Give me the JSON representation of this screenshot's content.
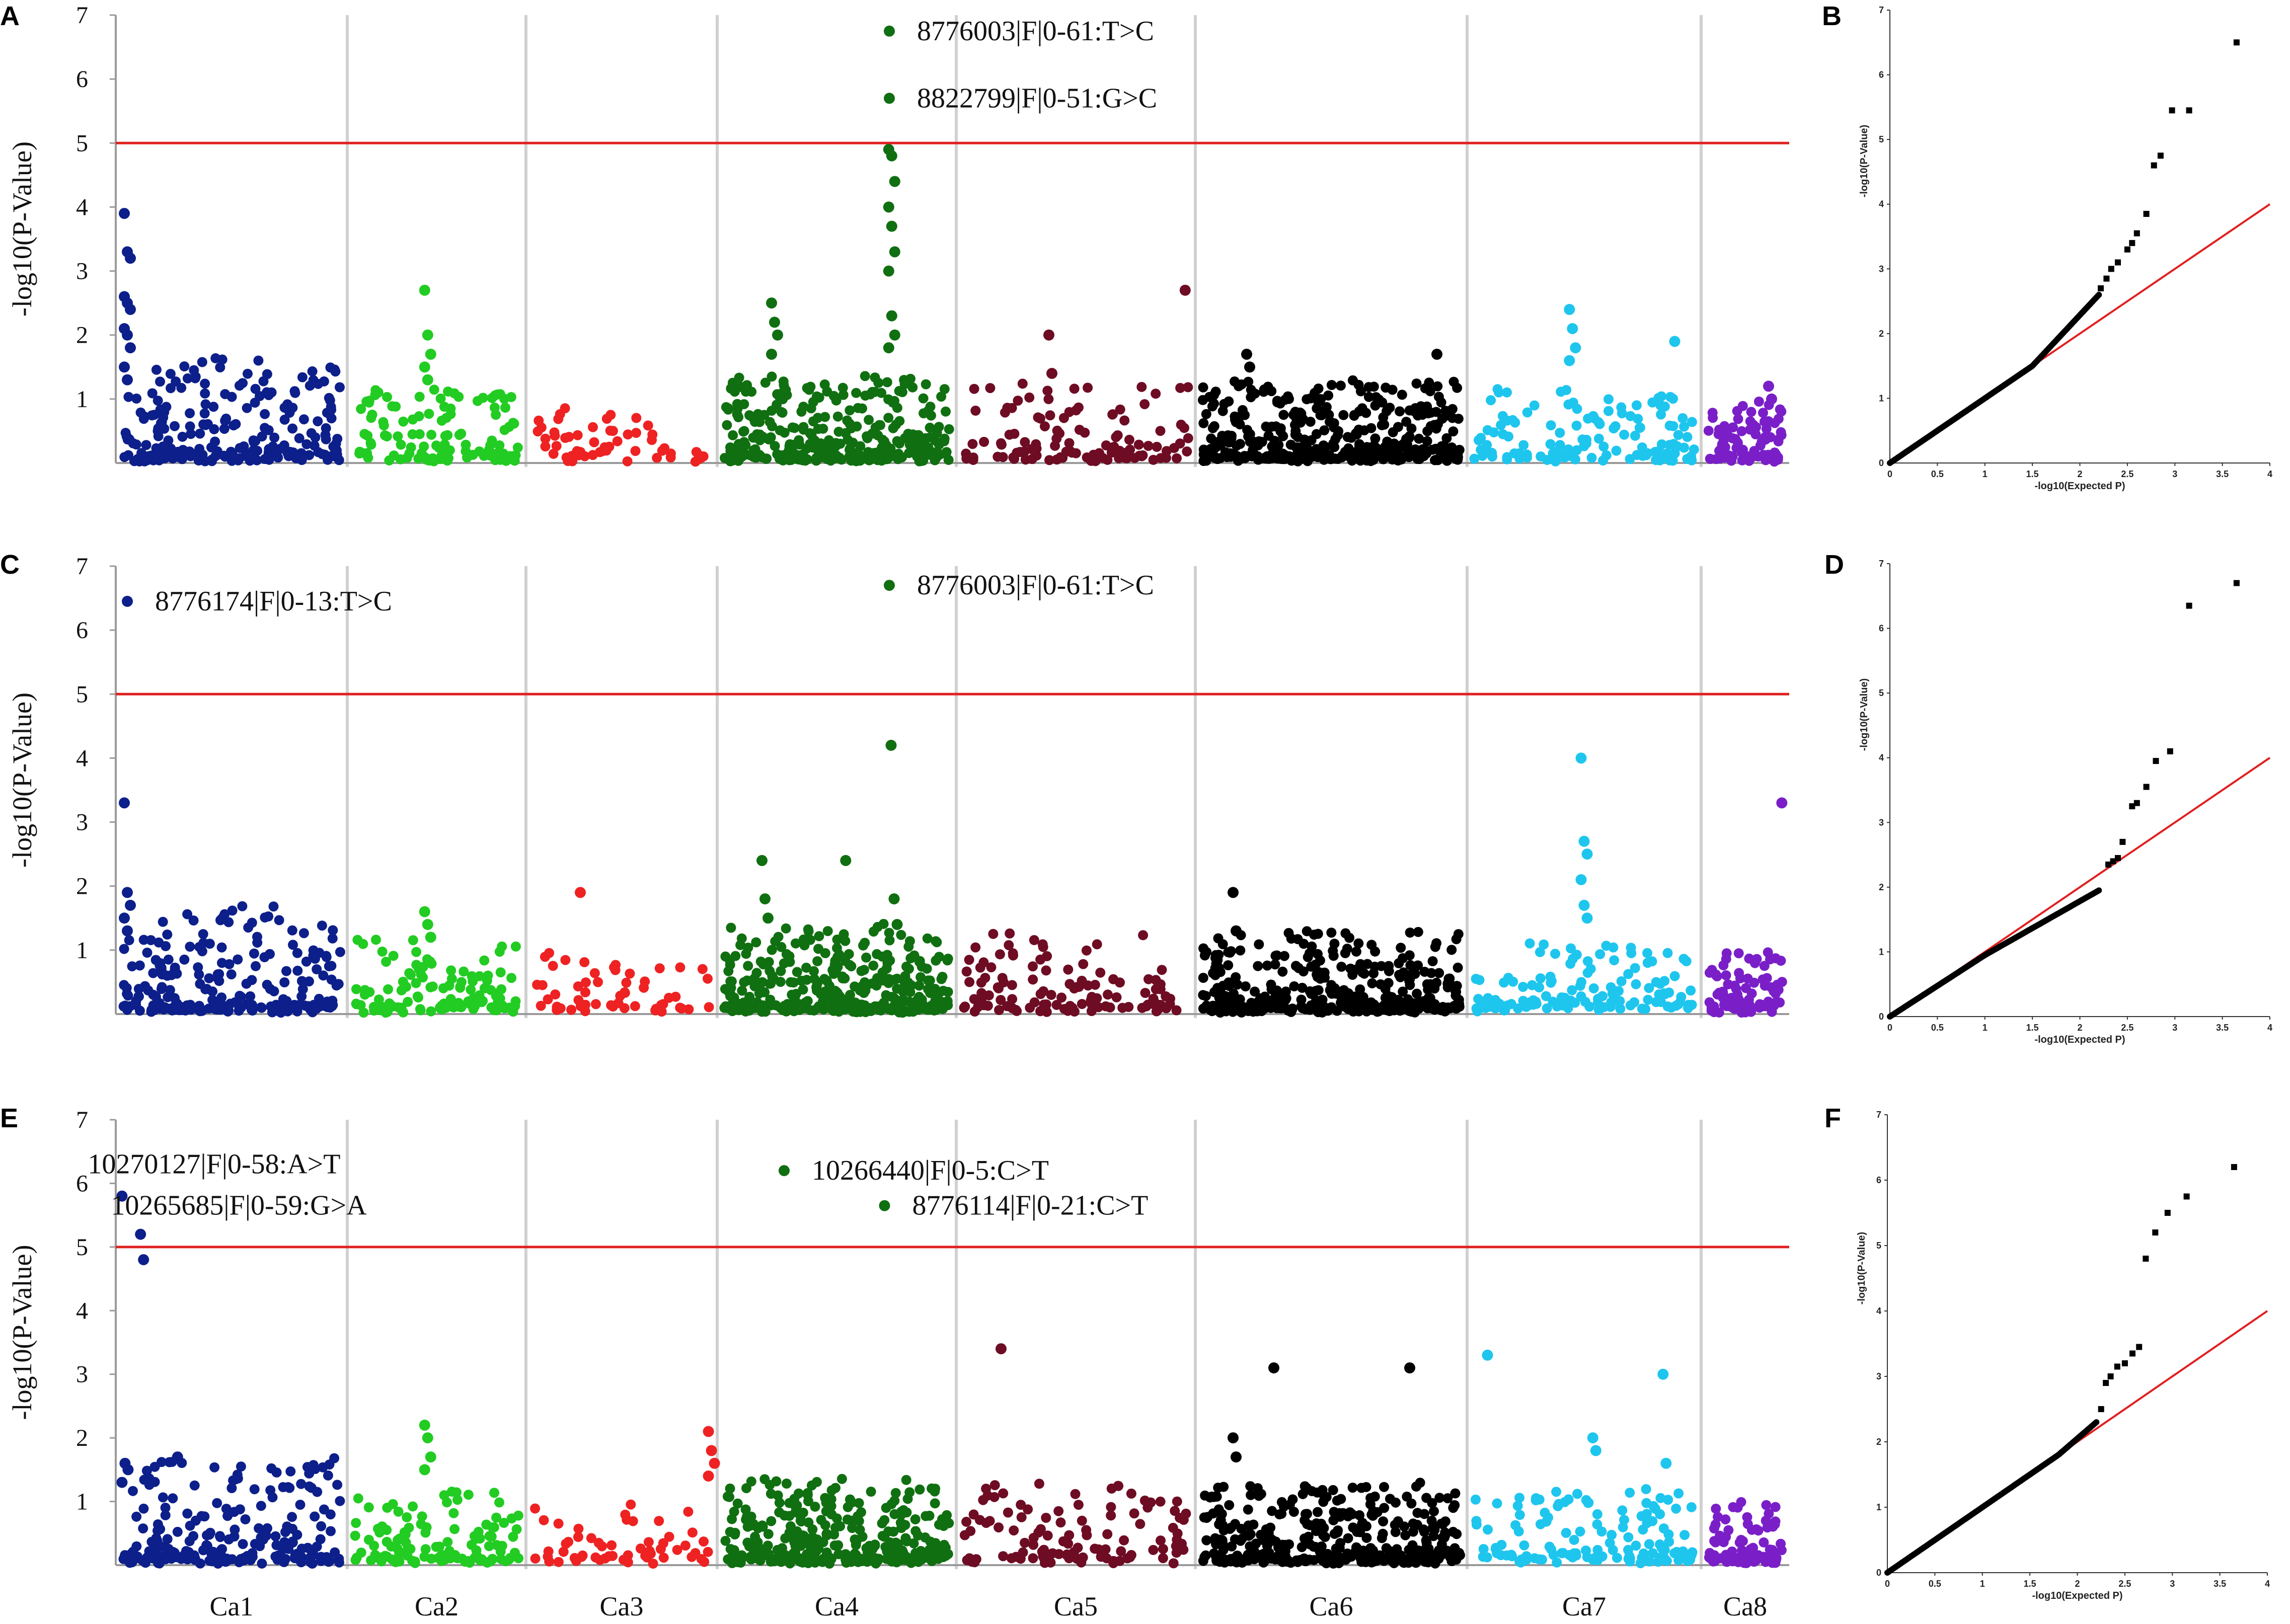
{
  "figure": {
    "description_free": true,
    "panels": [
      "A",
      "B",
      "C",
      "D",
      "E",
      "F"
    ]
  },
  "colors": {
    "Ca1": "#0d1f8a",
    "Ca2": "#22cc22",
    "Ca3": "#ee2222",
    "Ca4": "#106f10",
    "Ca5": "#6e0c24",
    "Ca6": "#000000",
    "Ca7": "#1ec6ee",
    "Ca8": "#7a1fc8",
    "threshold": "#e02020",
    "separator": "#d0d0d0",
    "qq_points": "#000000",
    "qq_line": "#e02020"
  },
  "chart_data": [
    {
      "panel": "A",
      "type": "scatter",
      "title": "",
      "xlabel": "",
      "ylabel": "-log10(P-Value)",
      "ylim": [
        0,
        7
      ],
      "yticks": [
        "1",
        "2",
        "3",
        "4",
        "5",
        "6",
        "7"
      ],
      "threshold": 5,
      "chromosomes": [
        "Ca1",
        "Ca2",
        "Ca3",
        "Ca4",
        "Ca5",
        "Ca6",
        "Ca7",
        "Ca8"
      ],
      "show_chrom_labels": false,
      "peaks": [
        {
          "chrom": "Ca1",
          "pos": 0.05,
          "values": [
            3.9,
            3.3,
            3.2,
            2.6,
            2.5,
            2.4,
            2.1,
            2.0,
            1.8,
            1.5,
            1.3
          ]
        },
        {
          "chrom": "Ca2",
          "pos": 0.45,
          "values": [
            2.7,
            2.0,
            1.7,
            1.5,
            1.3
          ]
        },
        {
          "chrom": "Ca4",
          "pos": 0.73,
          "values": [
            4.9,
            4.8,
            4.4,
            4.0,
            3.7,
            3.3,
            3.0,
            2.3,
            2.0,
            1.8
          ]
        },
        {
          "chrom": "Ca4",
          "pos": 0.24,
          "values": [
            2.5,
            2.2,
            2.0,
            1.7
          ]
        },
        {
          "chrom": "Ca5",
          "pos": 0.97,
          "values": [
            2.7
          ]
        },
        {
          "chrom": "Ca5",
          "pos": 0.4,
          "values": [
            2.0,
            1.4
          ]
        },
        {
          "chrom": "Ca6",
          "pos": 0.2,
          "values": [
            1.7,
            1.5
          ]
        },
        {
          "chrom": "Ca6",
          "pos": 0.9,
          "values": [
            1.7
          ]
        },
        {
          "chrom": "Ca7",
          "pos": 0.45,
          "values": [
            2.4,
            2.1,
            1.8,
            1.6
          ]
        },
        {
          "chrom": "Ca7",
          "pos": 0.9,
          "values": [
            1.9
          ]
        },
        {
          "chrom": "Ca8",
          "pos": 0.8,
          "values": [
            1.2,
            1.0
          ]
        }
      ],
      "annotations": [
        {
          "label": "8776003|F|0-61:T>C",
          "chrom": "Ca4",
          "pos": 0.72,
          "value": 6.75
        },
        {
          "label": "8822799|F|0-51:G>C",
          "chrom": "Ca4",
          "pos": 0.72,
          "value": 5.7
        }
      ]
    },
    {
      "panel": "C",
      "type": "scatter",
      "title": "",
      "xlabel": "",
      "ylabel": "-log10(P-Value)",
      "ylim": [
        0,
        7
      ],
      "yticks": [
        "1",
        "2",
        "3",
        "4",
        "5",
        "6",
        "7"
      ],
      "threshold": 5,
      "chromosomes": [
        "Ca1",
        "Ca2",
        "Ca3",
        "Ca4",
        "Ca5",
        "Ca6",
        "Ca7",
        "Ca8"
      ],
      "show_chrom_labels": false,
      "peaks": [
        {
          "chrom": "Ca1",
          "pos": 0.05,
          "values": [
            3.3,
            1.9,
            1.7,
            1.5,
            1.3
          ]
        },
        {
          "chrom": "Ca2",
          "pos": 0.45,
          "values": [
            1.6,
            1.4,
            1.2
          ]
        },
        {
          "chrom": "Ca3",
          "pos": 0.3,
          "values": [
            1.9
          ]
        },
        {
          "chrom": "Ca4",
          "pos": 0.74,
          "values": [
            4.2,
            1.8,
            1.4
          ]
        },
        {
          "chrom": "Ca4",
          "pos": 0.55,
          "values": [
            2.4
          ]
        },
        {
          "chrom": "Ca4",
          "pos": 0.2,
          "values": [
            2.4,
            1.8,
            1.5
          ]
        },
        {
          "chrom": "Ca7",
          "pos": 0.5,
          "values": [
            4.0,
            2.7,
            2.5,
            2.1,
            1.7,
            1.5
          ]
        },
        {
          "chrom": "Ca8",
          "pos": 0.95,
          "values": [
            3.3
          ]
        },
        {
          "chrom": "Ca6",
          "pos": 0.15,
          "values": [
            1.9,
            1.3
          ]
        }
      ],
      "annotations": [
        {
          "label": "8776174|F|0-13:T>C",
          "chrom": "Ca1",
          "pos": 0.05,
          "value": 6.45
        },
        {
          "label": "8776003|F|0-61:T>C",
          "chrom": "Ca4",
          "pos": 0.72,
          "value": 6.7
        }
      ]
    },
    {
      "panel": "E",
      "type": "scatter",
      "title": "",
      "xlabel": "",
      "ylabel": "-log10(P-Value)",
      "ylim": [
        0,
        7
      ],
      "yticks": [
        "1",
        "2",
        "3",
        "4",
        "5",
        "6",
        "7"
      ],
      "threshold": 5,
      "chromosomes": [
        "Ca1",
        "Ca2",
        "Ca3",
        "Ca4",
        "Ca5",
        "Ca6",
        "Ca7",
        "Ca8"
      ],
      "show_chrom_labels": true,
      "peaks": [
        {
          "chrom": "Ca1",
          "pos": 0.04,
          "values": [
            5.8,
            1.6,
            1.5,
            1.3
          ]
        },
        {
          "chrom": "Ca1",
          "pos": 0.12,
          "values": [
            5.2,
            4.8
          ]
        },
        {
          "chrom": "Ca1",
          "pos": 0.28,
          "values": [
            1.7
          ]
        },
        {
          "chrom": "Ca2",
          "pos": 0.45,
          "values": [
            2.2,
            2.0,
            1.7,
            1.5
          ]
        },
        {
          "chrom": "Ca3",
          "pos": 0.97,
          "values": [
            2.1,
            1.8,
            1.6,
            1.4
          ]
        },
        {
          "chrom": "Ca5",
          "pos": 0.2,
          "values": [
            3.4
          ]
        },
        {
          "chrom": "Ca6",
          "pos": 0.3,
          "values": [
            3.1
          ]
        },
        {
          "chrom": "Ca6",
          "pos": 0.8,
          "values": [
            3.1
          ]
        },
        {
          "chrom": "Ca6",
          "pos": 0.15,
          "values": [
            2.0,
            1.7
          ]
        },
        {
          "chrom": "Ca7",
          "pos": 0.1,
          "values": [
            3.3
          ]
        },
        {
          "chrom": "Ca7",
          "pos": 0.85,
          "values": [
            3.0,
            1.6
          ]
        },
        {
          "chrom": "Ca7",
          "pos": 0.55,
          "values": [
            2.0,
            1.8
          ]
        }
      ],
      "annotations": [
        {
          "label": "10270127|F|0-58:A>T",
          "chrom": "Ca1",
          "pos": 0.14,
          "value": 6.3,
          "no_marker": true
        },
        {
          "label": "10265685|F|0-59:G>A",
          "chrom": "Ca1",
          "pos": 0.24,
          "value": 5.65,
          "no_marker": true
        },
        {
          "label": "10266440|F|0-5:C>T",
          "chrom": "Ca4",
          "pos": 0.28,
          "value": 6.2
        },
        {
          "label": "8776114|F|0-21:C>T",
          "chrom": "Ca4",
          "pos": 0.7,
          "value": 5.65
        }
      ]
    },
    {
      "panel": "B",
      "type": "scatter",
      "subtype": "qq",
      "xlabel": "-log10(Expected P)",
      "ylabel": "-log10(P-Value)",
      "xlim": [
        0,
        4
      ],
      "ylim": [
        0,
        7
      ],
      "xticks": [
        "0",
        "0.5",
        "1",
        "1.5",
        "2",
        "2.5",
        "3",
        "3.5",
        "4"
      ],
      "yticks": [
        "0",
        "1",
        "2",
        "3",
        "4",
        "5",
        "6",
        "7"
      ],
      "x": [
        2.22,
        2.28,
        2.33,
        2.4,
        2.5,
        2.55,
        2.6,
        2.7,
        2.78,
        2.85,
        2.97,
        3.15,
        3.65
      ],
      "y": [
        2.7,
        2.85,
        3.0,
        3.1,
        3.3,
        3.4,
        3.55,
        3.85,
        4.6,
        4.75,
        5.45,
        5.45,
        6.5
      ],
      "curve": {
        "bend_x": 1.5,
        "bend_y": 1.5,
        "end_x": 2.2,
        "end_y": 2.6
      }
    },
    {
      "panel": "D",
      "type": "scatter",
      "subtype": "qq",
      "xlabel": "-log10(Expected P)",
      "ylabel": "-log10(P-Value)",
      "xlim": [
        0,
        4
      ],
      "ylim": [
        0,
        7
      ],
      "xticks": [
        "0",
        "0.5",
        "1",
        "1.5",
        "2",
        "2.5",
        "3",
        "3.5",
        "4"
      ],
      "yticks": [
        "0",
        "1",
        "2",
        "3",
        "4",
        "5",
        "6",
        "7"
      ],
      "x": [
        2.3,
        2.35,
        2.4,
        2.45,
        2.55,
        2.6,
        2.7,
        2.8,
        2.95,
        3.15,
        3.65
      ],
      "y": [
        2.35,
        2.4,
        2.45,
        2.7,
        3.25,
        3.3,
        3.55,
        3.95,
        4.1,
        6.35,
        6.7
      ],
      "curve": {
        "bend_x": 1.0,
        "bend_y": 0.95,
        "end_x": 2.2,
        "end_y": 1.95
      }
    },
    {
      "panel": "F",
      "type": "scatter",
      "subtype": "qq",
      "xlabel": "-log10(Expected P)",
      "ylabel": "-log10(P-Value)",
      "xlim": [
        0,
        4
      ],
      "ylim": [
        0,
        7
      ],
      "xticks": [
        "0",
        "0.5",
        "1",
        "1.5",
        "2",
        "2.5",
        "3",
        "3.5",
        "4"
      ],
      "yticks": [
        "0",
        "1",
        "2",
        "3",
        "4",
        "5",
        "6",
        "7"
      ],
      "x": [
        2.25,
        2.3,
        2.35,
        2.42,
        2.5,
        2.58,
        2.65,
        2.72,
        2.82,
        2.95,
        3.15,
        3.65
      ],
      "y": [
        2.5,
        2.9,
        3.0,
        3.15,
        3.2,
        3.35,
        3.45,
        4.8,
        5.2,
        5.5,
        5.75,
        6.2
      ],
      "curve": {
        "bend_x": 1.8,
        "bend_y": 1.8,
        "end_x": 2.2,
        "end_y": 2.3
      }
    }
  ]
}
